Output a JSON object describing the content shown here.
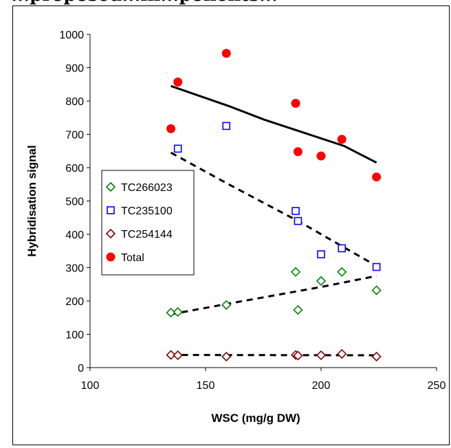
{
  "page": {
    "header_partial": "...proposed...in...ponents..."
  },
  "colors": {
    "total": "#ff0000",
    "tc266023": "#008000",
    "tc235100": "#0000ff",
    "tc254144": "#800000",
    "trend": "#000000"
  },
  "chart_data": {
    "type": "scatter",
    "xlabel": "WSC (mg/g DW)",
    "ylabel": "Hybridisation signal",
    "xlim": [
      100,
      250
    ],
    "ylim": [
      0,
      1000
    ],
    "x_ticks": [
      100,
      150,
      200,
      250
    ],
    "y_ticks": [
      0,
      100,
      200,
      300,
      400,
      500,
      600,
      700,
      800,
      900,
      1000
    ],
    "grid": false,
    "legend_position": "left-middle",
    "series": [
      {
        "name": "TC266023",
        "marker": "diamond",
        "color": "#008000",
        "points": [
          [
            135,
            165
          ],
          [
            138,
            167
          ],
          [
            159,
            188
          ],
          [
            189,
            287
          ],
          [
            190,
            173
          ],
          [
            200,
            260
          ],
          [
            209,
            287
          ],
          [
            224,
            232
          ]
        ],
        "trend": [
          [
            135,
            160
          ],
          [
            160,
            192
          ],
          [
            200,
            242
          ],
          [
            224,
            275
          ]
        ]
      },
      {
        "name": "TC235100",
        "marker": "square",
        "color": "#0000ff",
        "points": [
          [
            138,
            657
          ],
          [
            159,
            725
          ],
          [
            189,
            470
          ],
          [
            190,
            440
          ],
          [
            200,
            340
          ],
          [
            209,
            358
          ],
          [
            224,
            302
          ]
        ],
        "trend": [
          [
            135,
            645
          ],
          [
            160,
            550
          ],
          [
            190,
            440
          ],
          [
            224,
            305
          ]
        ]
      },
      {
        "name": "TC254144",
        "marker": "diamond",
        "color": "#800000",
        "points": [
          [
            135,
            38
          ],
          [
            138,
            37
          ],
          [
            159,
            33
          ],
          [
            189,
            38
          ],
          [
            190,
            36
          ],
          [
            200,
            37
          ],
          [
            209,
            41
          ],
          [
            224,
            33
          ]
        ],
        "trend": [
          [
            135,
            38
          ],
          [
            224,
            37
          ]
        ]
      },
      {
        "name": "Total",
        "marker": "circle",
        "color": "#ff0000",
        "points": [
          [
            135,
            717
          ],
          [
            138,
            857
          ],
          [
            159,
            943
          ],
          [
            189,
            793
          ],
          [
            190,
            648
          ],
          [
            200,
            635
          ],
          [
            209,
            685
          ],
          [
            224,
            572
          ]
        ],
        "trend": [
          [
            135,
            845
          ],
          [
            160,
            785
          ],
          [
            175,
            745
          ],
          [
            210,
            665
          ],
          [
            224,
            615
          ]
        ]
      }
    ]
  }
}
